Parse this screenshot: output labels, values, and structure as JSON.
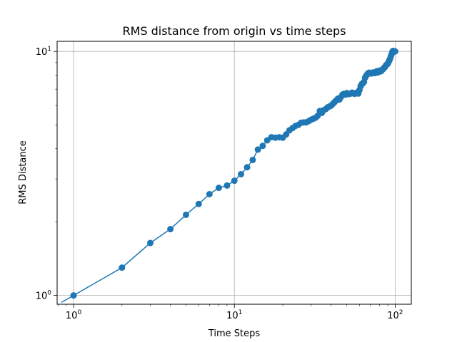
{
  "chart_data": {
    "type": "line",
    "title": "RMS distance from origin vs time steps",
    "xlabel": "Time Steps",
    "ylabel": "RMS Distance",
    "xscale": "log",
    "yscale": "log",
    "xlim": [
      0.79,
      126
    ],
    "ylim": [
      0.92,
      11.0
    ],
    "grid": true,
    "xticks": [
      {
        "value": 1,
        "base": "10",
        "exp": "0"
      },
      {
        "value": 10,
        "base": "10",
        "exp": "1"
      },
      {
        "value": 100,
        "base": "10",
        "exp": "2"
      }
    ],
    "yticks": [
      {
        "value": 1,
        "base": "10",
        "exp": "0"
      },
      {
        "value": 10,
        "base": "10",
        "exp": "1"
      }
    ],
    "series": [
      {
        "color": "#1f77b4",
        "marker": "circle",
        "x": [
          1,
          2,
          3,
          4,
          5,
          6,
          7,
          8,
          9,
          10,
          11,
          12,
          13,
          14,
          15,
          16,
          17,
          18,
          19,
          20,
          21,
          22,
          23,
          24,
          25,
          26,
          27,
          28,
          29,
          30,
          31,
          32,
          33,
          34,
          35,
          36,
          37,
          38,
          39,
          40,
          41,
          42,
          43,
          44,
          45,
          46,
          47,
          48,
          49,
          50,
          51,
          52,
          53,
          54,
          55,
          56,
          57,
          58,
          59,
          60,
          61,
          62,
          63,
          64,
          65,
          66,
          67,
          68,
          69,
          70,
          71,
          72,
          73,
          74,
          75,
          76,
          77,
          78,
          79,
          80,
          81,
          82,
          83,
          84,
          85,
          86,
          87,
          88,
          89,
          90,
          91,
          92,
          93,
          94,
          95,
          96,
          97,
          98,
          99,
          100
        ],
        "y": [
          1.0,
          1.3,
          1.64,
          1.87,
          2.14,
          2.37,
          2.6,
          2.76,
          2.82,
          2.95,
          3.14,
          3.35,
          3.59,
          3.96,
          4.1,
          4.32,
          4.45,
          4.43,
          4.45,
          4.43,
          4.57,
          4.75,
          4.85,
          4.95,
          5.0,
          5.1,
          5.12,
          5.12,
          5.18,
          5.25,
          5.3,
          5.35,
          5.45,
          5.7,
          5.6,
          5.75,
          5.8,
          5.9,
          5.95,
          6.0,
          6.1,
          6.2,
          6.3,
          6.4,
          6.35,
          6.5,
          6.65,
          6.7,
          6.65,
          6.75,
          6.68,
          6.7,
          6.72,
          6.78,
          6.74,
          6.7,
          6.75,
          6.78,
          6.72,
          6.95,
          7.2,
          7.35,
          7.4,
          7.5,
          7.8,
          7.95,
          8.05,
          8.15,
          8.18,
          8.15,
          8.12,
          8.14,
          8.2,
          8.18,
          8.15,
          8.22,
          8.3,
          8.2,
          8.25,
          8.35,
          8.28,
          8.32,
          8.4,
          8.45,
          8.55,
          8.6,
          8.7,
          8.8,
          8.85,
          8.9,
          9.05,
          9.2,
          9.35,
          9.55,
          9.75,
          9.95,
          10.05,
          10.0,
          9.98,
          10.0
        ]
      }
    ]
  }
}
